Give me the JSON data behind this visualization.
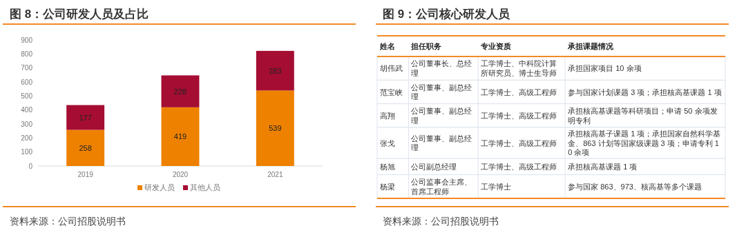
{
  "chart_data": [
    {
      "type": "bar",
      "title": "图 8：公司研发人员及占比",
      "categories": [
        "2019",
        "2020",
        "2021"
      ],
      "stacked": true,
      "ylim": [
        0,
        900
      ],
      "yticks": [
        0,
        100,
        200,
        300,
        400,
        500,
        600,
        700,
        800,
        900
      ],
      "data_labels": true,
      "legend": "bottom",
      "series": [
        {
          "name": "研发人员",
          "color": "#ee8100",
          "values": [
            258,
            419,
            539
          ]
        },
        {
          "name": "其他人员",
          "color": "#a50d32",
          "values": [
            177,
            228,
            283
          ]
        }
      ],
      "annotations": [
        "资料来源：公司招股说明书"
      ]
    },
    {
      "type": "other",
      "title": "图 9：公司核心研发人员",
      "categories": [
        "姓名",
        "担任职务",
        "专业资质",
        "承担课题情况"
      ],
      "annotations": [
        "胡伟武",
        "公司董事长、总经理",
        "工学博士、中科院计算所研究员、博士生导师",
        "承担国家项目 10 余项",
        "范宝峡",
        "公司董事、副总经理",
        "工学博士、高级工程师",
        "参与国家计划课题 3 项；承担核高基课题 1 项",
        "高翔",
        "公司董事、副总经理",
        "工学博士、高级工程师",
        "承担核高基课题等科研项目；申请 50 余项发明专利",
        "张戈",
        "公司董事、副总经理",
        "工学博士、高级工程师",
        "承担核高基子课题 1 项；承担国家自然科学基金、863 计划等国家级课题 3 项；申请专利 10 余项",
        "杨旭",
        "公司副总经理",
        "工学博士、高级工程师",
        "承担核高基课题 1 项",
        "杨梁",
        "公司监事会主席、首席工程师",
        "工学博士",
        "参与国家 863、973、核高基等多个课题",
        "资料来源：公司招股说明书"
      ]
    }
  ]
}
